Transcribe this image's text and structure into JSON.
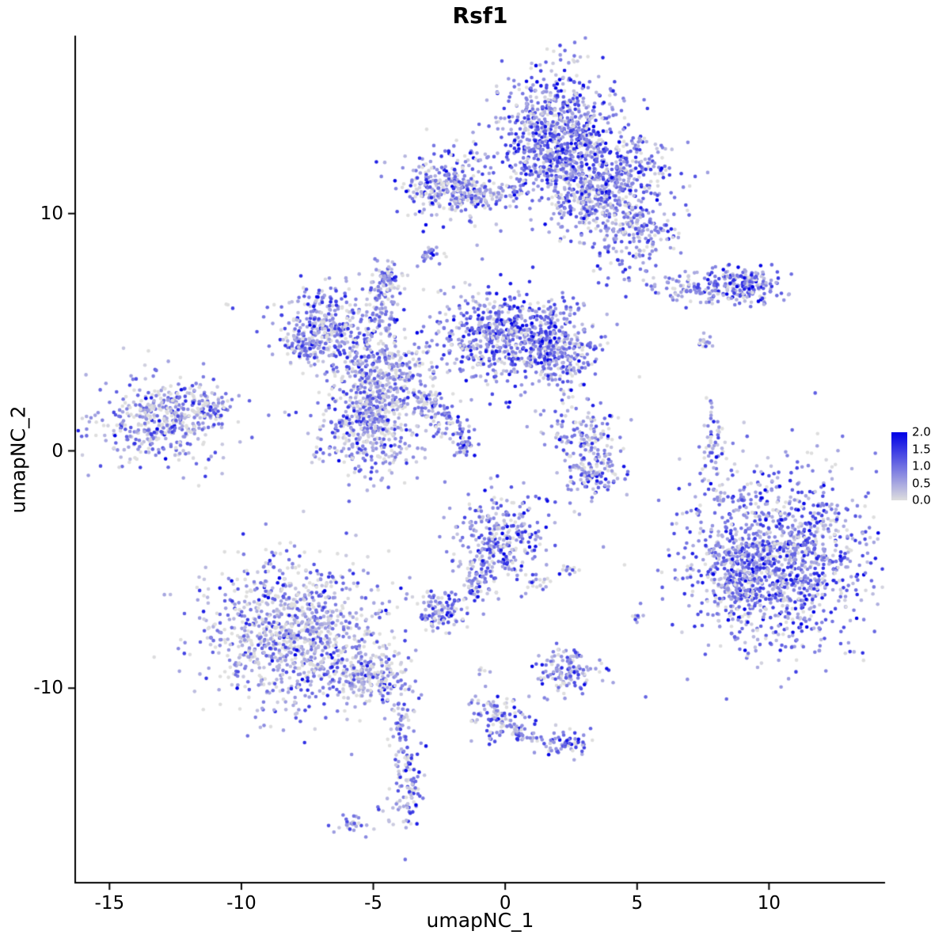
{
  "chart_data": {
    "type": "scatter",
    "title": "Rsf1",
    "xlabel": "umapNC_1",
    "ylabel": "umapNC_2",
    "xlim": [
      -16.3,
      14.4
    ],
    "ylim": [
      -18.2,
      17.5
    ],
    "x_ticks": [
      -15,
      -10,
      -5,
      0,
      5,
      10
    ],
    "y_ticks": [
      -10,
      0,
      10
    ],
    "grid": false,
    "legend_position": "right",
    "legend_labels": [
      "2.0",
      "1.5",
      "1.0",
      "0.5",
      "0.0"
    ],
    "legend_values": [
      2.0,
      1.5,
      1.0,
      0.5,
      0.0
    ],
    "color_low": "#DEDEDE",
    "color_high": "#0000E6",
    "expression_range": [
      0.0,
      2.0
    ],
    "clusters": [
      {
        "cx": 1.9,
        "cy": 13.2,
        "sx": 1.0,
        "sy": 1.4,
        "n": 850,
        "expr": 0.85
      },
      {
        "cx": 4.3,
        "cy": 11.8,
        "sx": 1.1,
        "sy": 0.9,
        "n": 320,
        "expr": 0.8
      },
      {
        "cx": 4.9,
        "cy": 9.4,
        "sx": 0.95,
        "sy": 0.85,
        "n": 240,
        "expr": 0.7
      },
      {
        "cx": 3.2,
        "cy": 10.8,
        "sx": 0.8,
        "sy": 0.7,
        "n": 180,
        "expr": 0.65
      },
      {
        "cx": -2.2,
        "cy": 11.2,
        "sx": 0.95,
        "sy": 0.7,
        "n": 280,
        "expr": 0.7
      },
      {
        "cx": -0.6,
        "cy": 10.8,
        "sx": 0.8,
        "sy": 0.3,
        "n": 110,
        "expr": 0.6
      },
      {
        "cx": -2.8,
        "cy": 8.3,
        "sx": 0.22,
        "sy": 0.22,
        "n": 25,
        "expr": 0.5
      },
      {
        "cx": 7.7,
        "cy": 6.9,
        "sx": 1.3,
        "sy": 0.4,
        "n": 190,
        "expr": 0.75
      },
      {
        "cx": 9.3,
        "cy": 7.0,
        "sx": 0.5,
        "sy": 0.35,
        "n": 90,
        "expr": 0.95
      },
      {
        "cx": 7.6,
        "cy": 4.6,
        "sx": 0.2,
        "sy": 0.2,
        "n": 14,
        "expr": 0.4
      },
      {
        "cx": -6.6,
        "cy": 5.3,
        "sx": 0.9,
        "sy": 0.75,
        "n": 330,
        "expr": 0.7
      },
      {
        "cx": -4.4,
        "cy": 7.3,
        "sx": 0.32,
        "sy": 0.35,
        "n": 60,
        "expr": 0.6
      },
      {
        "cx": -4.7,
        "cy": 6.0,
        "sx": 0.28,
        "sy": 0.6,
        "n": 70,
        "expr": 0.5
      },
      {
        "cx": -4.8,
        "cy": 3.3,
        "sx": 0.95,
        "sy": 0.85,
        "n": 380,
        "expr": 0.6
      },
      {
        "cx": 0.1,
        "cy": 4.8,
        "sx": 1.4,
        "sy": 1.0,
        "n": 650,
        "expr": 0.8
      },
      {
        "cx": 2.0,
        "cy": 4.2,
        "sx": 0.7,
        "sy": 0.7,
        "n": 220,
        "expr": 0.85
      },
      {
        "cx": -5.2,
        "cy": 0.7,
        "sx": 0.95,
        "sy": 0.95,
        "n": 340,
        "expr": 0.65
      },
      {
        "cx": -2.9,
        "cy": 2.1,
        "sx": 0.3,
        "sy": 0.3,
        "n": 50,
        "expr": 0.6
      },
      {
        "cx": -2.2,
        "cy": 1.2,
        "sx": 0.3,
        "sy": 0.35,
        "n": 50,
        "expr": 0.7
      },
      {
        "cx": -1.6,
        "cy": 0.3,
        "sx": 0.25,
        "sy": 0.3,
        "n": 40,
        "expr": 0.8
      },
      {
        "cx": -5.0,
        "cy": 1.9,
        "sx": 0.4,
        "sy": 0.45,
        "n": 90,
        "expr": 0.55
      },
      {
        "cx": -7.4,
        "cy": 4.4,
        "sx": 0.5,
        "sy": 0.35,
        "n": 80,
        "expr": 0.6
      },
      {
        "cx": -13.1,
        "cy": 1.2,
        "sx": 1.2,
        "sy": 0.95,
        "n": 430,
        "expr": 0.55
      },
      {
        "cx": -11.3,
        "cy": 1.9,
        "sx": 0.45,
        "sy": 0.4,
        "n": 80,
        "expr": 0.6
      },
      {
        "cx": -10.5,
        "cy": 6.0,
        "sx": 0.12,
        "sy": 0.12,
        "n": 3,
        "expr": 0.3
      },
      {
        "cx": 3.1,
        "cy": 0.3,
        "sx": 0.8,
        "sy": 1.0,
        "n": 200,
        "expr": 0.6
      },
      {
        "cx": 3.3,
        "cy": -1.1,
        "sx": 0.4,
        "sy": 0.4,
        "n": 60,
        "expr": 0.9
      },
      {
        "cx": 7.9,
        "cy": 0.0,
        "sx": 0.25,
        "sy": 1.0,
        "n": 65,
        "expr": 0.5
      },
      {
        "cx": 8.1,
        "cy": -1.9,
        "sx": 0.12,
        "sy": 0.2,
        "n": 8,
        "expr": 0.5
      },
      {
        "cx": 10.4,
        "cy": -4.6,
        "sx": 1.7,
        "sy": 1.8,
        "n": 1250,
        "expr": 0.85
      },
      {
        "cx": 8.9,
        "cy": -5.2,
        "sx": 0.6,
        "sy": 1.0,
        "n": 180,
        "expr": 0.6
      },
      {
        "cx": -0.2,
        "cy": -3.7,
        "sx": 0.8,
        "sy": 0.95,
        "n": 300,
        "expr": 0.75
      },
      {
        "cx": -1.1,
        "cy": -5.4,
        "sx": 0.3,
        "sy": 0.5,
        "n": 60,
        "expr": 0.6
      },
      {
        "cx": -2.4,
        "cy": -6.7,
        "sx": 0.5,
        "sy": 0.4,
        "n": 110,
        "expr": 0.7
      },
      {
        "cx": 1.3,
        "cy": -5.5,
        "sx": 0.25,
        "sy": 0.2,
        "n": 18,
        "expr": 0.5
      },
      {
        "cx": 2.5,
        "cy": -5.0,
        "sx": 0.3,
        "sy": 0.15,
        "n": 12,
        "expr": 0.5
      },
      {
        "cx": -8.0,
        "cy": -7.7,
        "sx": 1.7,
        "sy": 1.5,
        "n": 1050,
        "expr": 0.5
      },
      {
        "cx": -5.1,
        "cy": -9.6,
        "sx": 0.8,
        "sy": 0.5,
        "n": 190,
        "expr": 0.5
      },
      {
        "cx": -4.0,
        "cy": -11.5,
        "sx": 0.25,
        "sy": 0.8,
        "n": 55,
        "expr": 0.5
      },
      {
        "cx": -3.8,
        "cy": -13.1,
        "sx": 0.15,
        "sy": 0.3,
        "n": 12,
        "expr": 0.5
      },
      {
        "cx": 2.3,
        "cy": -9.2,
        "sx": 0.6,
        "sy": 0.45,
        "n": 130,
        "expr": 0.7
      },
      {
        "cx": 4.9,
        "cy": -7.0,
        "sx": 0.18,
        "sy": 0.15,
        "n": 8,
        "expr": 0.5
      },
      {
        "cx": -0.4,
        "cy": -11.2,
        "sx": 0.55,
        "sy": 0.5,
        "n": 90,
        "expr": 0.6
      },
      {
        "cx": 0.7,
        "cy": -11.9,
        "sx": 0.35,
        "sy": 0.3,
        "n": 40,
        "expr": 0.6
      },
      {
        "cx": 2.2,
        "cy": -12.3,
        "sx": 0.5,
        "sy": 0.3,
        "n": 65,
        "expr": 0.7
      },
      {
        "cx": -0.8,
        "cy": -9.2,
        "sx": 0.12,
        "sy": 0.12,
        "n": 6,
        "expr": 0.5
      },
      {
        "cx": -3.7,
        "cy": -14.3,
        "sx": 0.3,
        "sy": 0.75,
        "n": 85,
        "expr": 0.7
      },
      {
        "cx": -5.9,
        "cy": -15.7,
        "sx": 0.35,
        "sy": 0.2,
        "n": 28,
        "expr": 0.5
      },
      {
        "cx": -4.8,
        "cy": -15.1,
        "sx": 0.1,
        "sy": 0.1,
        "n": 4,
        "expr": 0.4
      }
    ]
  }
}
